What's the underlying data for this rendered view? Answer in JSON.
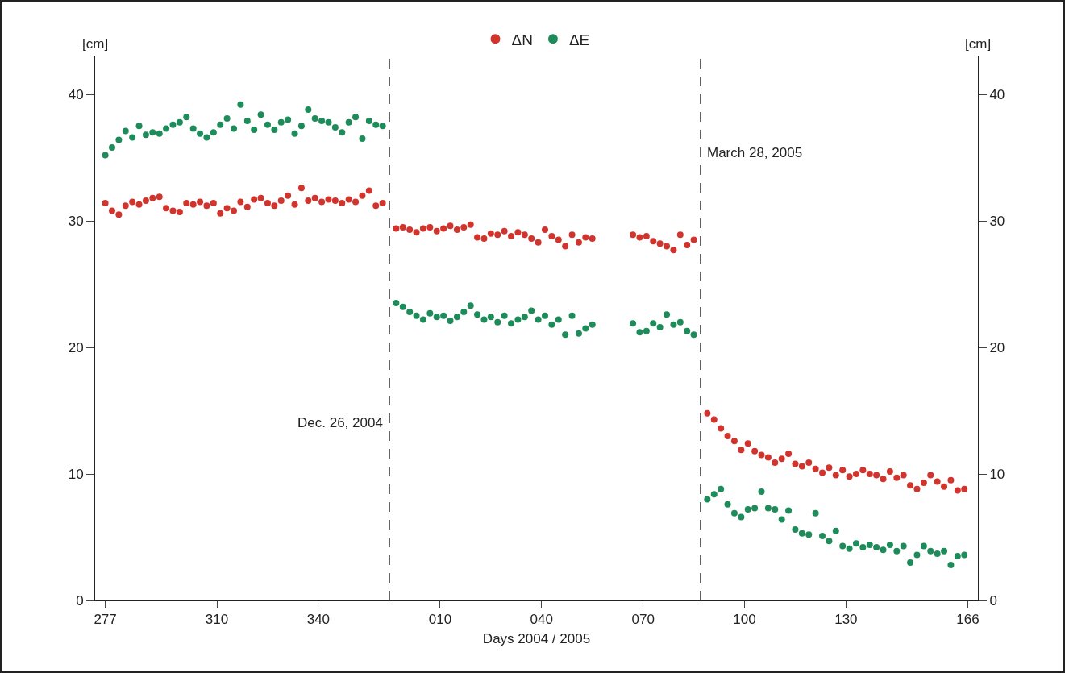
{
  "chart_data": {
    "type": "scatter",
    "xlabel": "Days 2004 / 2005",
    "ylabel": "[cm]",
    "y2label": "[cm]",
    "x": [
      "2004-10-03",
      "2004-10-05",
      "2004-10-07",
      "2004-10-09",
      "2004-10-11",
      "2004-10-13",
      "2004-10-15",
      "2004-10-17",
      "2004-10-19",
      "2004-10-21",
      "2004-10-23",
      "2004-10-25",
      "2004-10-27",
      "2004-10-29",
      "2004-10-31",
      "2004-11-02",
      "2004-11-04",
      "2004-11-06",
      "2004-11-08",
      "2004-11-10",
      "2004-11-12",
      "2004-11-14",
      "2004-11-16",
      "2004-11-18",
      "2004-11-20",
      "2004-11-22",
      "2004-11-24",
      "2004-11-26",
      "2004-11-28",
      "2004-11-30",
      "2004-12-02",
      "2004-12-04",
      "2004-12-06",
      "2004-12-08",
      "2004-12-10",
      "2004-12-12",
      "2004-12-14",
      "2004-12-16",
      "2004-12-18",
      "2004-12-20",
      "2004-12-22",
      "2004-12-24",
      "2004-12-28",
      "2004-12-30",
      "2005-01-01",
      "2005-01-03",
      "2005-01-05",
      "2005-01-07",
      "2005-01-09",
      "2005-01-11",
      "2005-01-13",
      "2005-01-15",
      "2005-01-17",
      "2005-01-19",
      "2005-01-21",
      "2005-01-23",
      "2005-01-25",
      "2005-01-27",
      "2005-01-29",
      "2005-01-31",
      "2005-02-02",
      "2005-02-04",
      "2005-02-06",
      "2005-02-08",
      "2005-02-10",
      "2005-02-12",
      "2005-02-14",
      "2005-02-16",
      "2005-02-18",
      "2005-02-20",
      "2005-02-22",
      "2005-02-24",
      "2005-03-08",
      "2005-03-10",
      "2005-03-12",
      "2005-03-14",
      "2005-03-16",
      "2005-03-18",
      "2005-03-20",
      "2005-03-22",
      "2005-03-24",
      "2005-03-26",
      "2005-03-30",
      "2005-04-01",
      "2005-04-03",
      "2005-04-05",
      "2005-04-07",
      "2005-04-09",
      "2005-04-11",
      "2005-04-13",
      "2005-04-15",
      "2005-04-17",
      "2005-04-19",
      "2005-04-21",
      "2005-04-23",
      "2005-04-25",
      "2005-04-27",
      "2005-04-29",
      "2005-05-01",
      "2005-05-03",
      "2005-05-05",
      "2005-05-07",
      "2005-05-09",
      "2005-05-11",
      "2005-05-13",
      "2005-05-15",
      "2005-05-17",
      "2005-05-19",
      "2005-05-21",
      "2005-05-23",
      "2005-05-25",
      "2005-05-27",
      "2005-05-29",
      "2005-05-31",
      "2005-06-02",
      "2005-06-04",
      "2005-06-06",
      "2005-06-08",
      "2005-06-10",
      "2005-06-12",
      "2005-06-14"
    ],
    "series": [
      {
        "name": "ΔN",
        "color": "#d0342c",
        "values": [
          31.4,
          30.8,
          30.5,
          31.2,
          31.5,
          31.3,
          31.6,
          31.8,
          31.9,
          31.0,
          30.8,
          30.7,
          31.4,
          31.3,
          31.5,
          31.2,
          31.4,
          30.6,
          31.0,
          30.8,
          31.5,
          31.1,
          31.7,
          31.8,
          31.4,
          31.2,
          31.6,
          32.0,
          31.3,
          32.6,
          31.6,
          31.8,
          31.5,
          31.7,
          31.6,
          31.4,
          31.7,
          31.5,
          32.0,
          32.4,
          31.2,
          31.4,
          29.4,
          29.5,
          29.3,
          29.1,
          29.4,
          29.5,
          29.2,
          29.4,
          29.6,
          29.3,
          29.5,
          29.7,
          28.7,
          28.6,
          29.0,
          28.9,
          29.2,
          28.8,
          29.1,
          28.9,
          28.6,
          28.3,
          29.3,
          28.8,
          28.5,
          28.0,
          28.9,
          28.3,
          28.7,
          28.6,
          28.9,
          28.7,
          28.8,
          28.4,
          28.2,
          28.0,
          27.7,
          28.9,
          28.1,
          28.5,
          14.8,
          14.3,
          13.6,
          13.0,
          12.6,
          11.9,
          12.4,
          11.8,
          11.5,
          11.3,
          10.9,
          11.2,
          11.6,
          10.8,
          10.6,
          10.9,
          10.4,
          10.1,
          10.5,
          9.9,
          10.3,
          9.8,
          10.0,
          10.3,
          10.0,
          9.9,
          9.6,
          10.2,
          9.7,
          9.9,
          9.1,
          8.8,
          9.3,
          9.9,
          9.4,
          9.0,
          9.5,
          8.7,
          8.8
        ]
      },
      {
        "name": "ΔE",
        "color": "#1e8c5a",
        "values": [
          35.2,
          35.8,
          36.4,
          37.1,
          36.6,
          37.5,
          36.8,
          37.0,
          36.9,
          37.3,
          37.6,
          37.8,
          38.2,
          37.3,
          36.9,
          36.6,
          37.0,
          37.6,
          38.1,
          37.3,
          39.2,
          37.9,
          37.2,
          38.4,
          37.6,
          37.2,
          37.8,
          38.0,
          36.9,
          37.5,
          38.8,
          38.1,
          37.9,
          37.8,
          37.4,
          37.0,
          37.8,
          38.2,
          36.5,
          37.9,
          37.6,
          37.5,
          23.5,
          23.2,
          22.8,
          22.5,
          22.2,
          22.7,
          22.4,
          22.5,
          22.1,
          22.4,
          22.8,
          23.3,
          22.6,
          22.2,
          22.4,
          22.0,
          22.5,
          21.9,
          22.2,
          22.4,
          22.9,
          22.2,
          22.5,
          21.8,
          22.2,
          21.0,
          22.5,
          21.1,
          21.5,
          21.8,
          21.9,
          21.2,
          21.3,
          21.9,
          21.6,
          22.6,
          21.8,
          22.0,
          21.3,
          21.0,
          8.0,
          8.4,
          8.8,
          7.6,
          6.9,
          6.6,
          7.2,
          7.3,
          8.6,
          7.3,
          7.2,
          6.4,
          7.1,
          5.6,
          5.3,
          5.2,
          6.9,
          5.1,
          4.7,
          5.5,
          4.3,
          4.1,
          4.5,
          4.2,
          4.4,
          4.2,
          4.0,
          4.4,
          3.9,
          4.3,
          3.0,
          3.6,
          4.3,
          3.9,
          3.7,
          3.9,
          2.8,
          3.5,
          3.6
        ]
      }
    ],
    "xlim": [
      "2004-09-30",
      "2005-06-18"
    ],
    "xticks": [
      {
        "value": "2004-10-03",
        "label": "277"
      },
      {
        "value": "2004-11-05",
        "label": "310"
      },
      {
        "value": "2004-12-05",
        "label": "340"
      },
      {
        "value": "2005-01-10",
        "label": "010"
      },
      {
        "value": "2005-02-09",
        "label": "040"
      },
      {
        "value": "2005-03-11",
        "label": "070"
      },
      {
        "value": "2005-04-10",
        "label": "100"
      },
      {
        "value": "2005-05-10",
        "label": "130"
      },
      {
        "value": "2005-06-15",
        "label": "166"
      }
    ],
    "ylim": [
      0,
      43
    ],
    "yticks": [
      0,
      10,
      20,
      30,
      40
    ],
    "y2lim": [
      0,
      43
    ],
    "y2ticks": [
      0,
      10,
      20,
      30,
      40
    ],
    "ref_lines": [
      {
        "axis": "x",
        "value": "2004-12-26",
        "label": "Dec. 26, 2004",
        "color": "#333333",
        "line_style": "dashed"
      },
      {
        "axis": "x",
        "value": "2005-03-28",
        "label": "March 28, 2005",
        "color": "#333333",
        "line_style": "dashed"
      }
    ],
    "marker": "circle",
    "grid": false,
    "legend": "top"
  }
}
